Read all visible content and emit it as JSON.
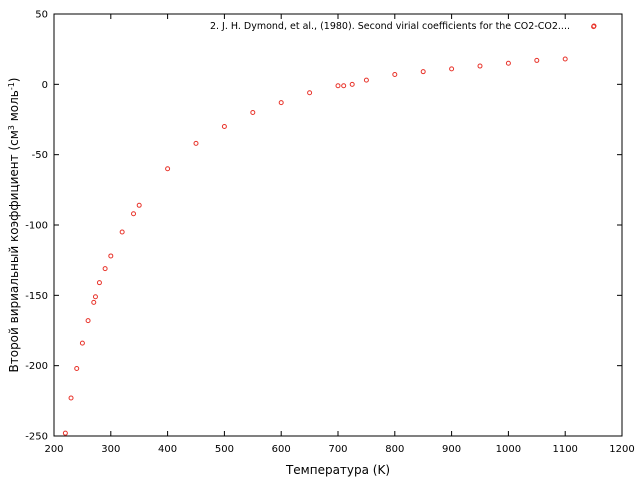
{
  "chart_data": {
    "type": "scatter",
    "xlabel": "Температура (K)",
    "ylabel": "Второй вириальный коэффициент (см",
    "ylabel_sup1": "3",
    "ylabel_mid": " моль",
    "ylabel_sup2": "-1",
    "ylabel_end": ")",
    "xlim": [
      200,
      1200
    ],
    "ylim": [
      -250,
      50
    ],
    "x_ticks": [
      200,
      300,
      400,
      500,
      600,
      700,
      800,
      900,
      1000,
      1100,
      1200
    ],
    "y_ticks": [
      -250,
      -200,
      -150,
      -100,
      -50,
      0,
      50
    ],
    "grid": false,
    "legend_position": "top-right",
    "marker_color": "#e8332a",
    "series": [
      {
        "name": "2. J. H. Dymond, et al., (1980). Second virial coefficients for the CO2-CO2....",
        "marker": "open-circle",
        "points": [
          [
            220,
            -248
          ],
          [
            230,
            -223
          ],
          [
            240,
            -202
          ],
          [
            250,
            -184
          ],
          [
            260,
            -168
          ],
          [
            270,
            -155
          ],
          [
            273,
            -151
          ],
          [
            280,
            -141
          ],
          [
            290,
            -131
          ],
          [
            300,
            -122
          ],
          [
            320,
            -105
          ],
          [
            340,
            -92
          ],
          [
            350,
            -86
          ],
          [
            400,
            -60
          ],
          [
            450,
            -42
          ],
          [
            500,
            -30
          ],
          [
            550,
            -20
          ],
          [
            600,
            -13
          ],
          [
            650,
            -6
          ],
          [
            700,
            -1
          ],
          [
            710,
            -1
          ],
          [
            725,
            0
          ],
          [
            750,
            3
          ],
          [
            800,
            7
          ],
          [
            850,
            9
          ],
          [
            900,
            11
          ],
          [
            950,
            13
          ],
          [
            1000,
            15
          ],
          [
            1050,
            17
          ],
          [
            1100,
            18
          ],
          [
            1150,
            41
          ]
        ]
      }
    ]
  }
}
